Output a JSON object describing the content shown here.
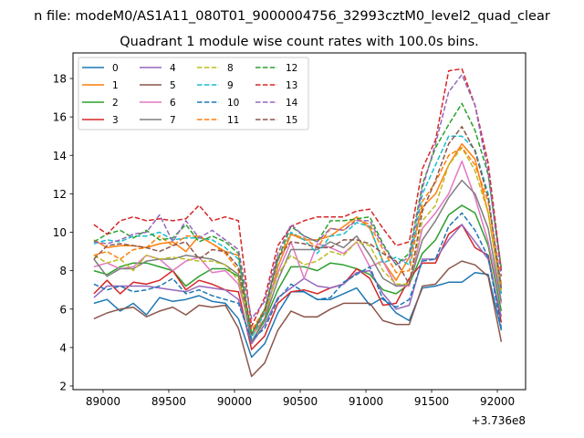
{
  "chart_data": {
    "type": "line",
    "suptitle": "n file: modeM0/AS1A11_080T01_9000004756_32993cztM0_level2_quad_clear",
    "title": "Quadrant 1 module wise count rates with 100.0s bins.",
    "xlabel": "",
    "ylabel": "",
    "x_offset_label": "+3.736e8",
    "xlim": [
      88771,
      92215
    ],
    "ylim": [
      1.81,
      19.33
    ],
    "xticks": [
      89000,
      89500,
      90000,
      90500,
      91000,
      91500,
      92000
    ],
    "yticks": [
      2,
      4,
      6,
      8,
      10,
      12,
      14,
      16,
      18
    ],
    "grid": false,
    "legend_placement": "top-left",
    "legend_columns": 4,
    "x": [
      88930,
      89030,
      89130,
      89230,
      89330,
      89430,
      89530,
      89630,
      89730,
      89830,
      89930,
      90030,
      90130,
      90230,
      90330,
      90430,
      90530,
      90630,
      90730,
      90830,
      90930,
      91030,
      91130,
      91230,
      91330,
      91430,
      91530,
      91630,
      91730,
      91830,
      91930,
      92030
    ],
    "series": [
      {
        "name": "0",
        "color": "#1f77b4",
        "style": "solid",
        "values": [
          6.3,
          6.5,
          5.9,
          6.3,
          5.7,
          6.6,
          6.4,
          6.5,
          6.7,
          6.4,
          6.3,
          5.5,
          3.5,
          4.2,
          5.8,
          6.9,
          6.9,
          6.5,
          6.5,
          6.8,
          7.1,
          6.2,
          6.6,
          5.8,
          5.4,
          7.1,
          7.2,
          7.4,
          7.4,
          7.9,
          7.8,
          4.9
        ]
      },
      {
        "name": "1",
        "color": "#ff7f0e",
        "style": "solid",
        "values": [
          9.6,
          9.2,
          9.3,
          9.3,
          9.2,
          9.4,
          9.5,
          9.0,
          9.8,
          9.4,
          9.0,
          8.8,
          4.6,
          5.5,
          8.2,
          9.9,
          9.6,
          9.6,
          9.8,
          10.3,
          10.8,
          10.2,
          8.5,
          7.5,
          8.7,
          11.3,
          12.0,
          13.5,
          14.6,
          13.8,
          11.0,
          6.8
        ]
      },
      {
        "name": "2",
        "color": "#2ca02c",
        "style": "solid",
        "values": [
          8.0,
          7.8,
          8.2,
          8.4,
          8.4,
          8.2,
          8.0,
          7.2,
          7.7,
          8.1,
          8.1,
          7.7,
          4.3,
          5.4,
          7.0,
          8.2,
          8.2,
          8.0,
          8.4,
          8.3,
          8.1,
          7.8,
          7.0,
          6.8,
          7.3,
          8.9,
          9.6,
          10.9,
          11.4,
          11.0,
          9.3,
          5.9
        ]
      },
      {
        "name": "3",
        "color": "#d62728",
        "style": "solid",
        "values": [
          6.8,
          7.5,
          6.8,
          7.4,
          7.3,
          7.5,
          8.0,
          7.0,
          7.5,
          7.3,
          7.0,
          6.9,
          3.9,
          4.6,
          6.3,
          6.9,
          7.0,
          6.8,
          7.1,
          7.3,
          8.1,
          7.6,
          6.2,
          6.3,
          7.6,
          8.4,
          8.4,
          9.9,
          10.4,
          9.2,
          8.8,
          5.3
        ]
      },
      {
        "name": "4",
        "color": "#9467bd",
        "style": "solid",
        "values": [
          6.6,
          7.2,
          7.2,
          7.2,
          7.2,
          7.1,
          7.0,
          6.9,
          7.2,
          7.1,
          7.0,
          6.5,
          4.2,
          5.2,
          6.6,
          7.1,
          7.6,
          7.2,
          7.1,
          7.3,
          7.9,
          8.0,
          6.8,
          6.0,
          6.2,
          8.6,
          8.6,
          9.6,
          10.4,
          9.5,
          8.6,
          5.6
        ]
      },
      {
        "name": "5",
        "color": "#8c564b",
        "style": "solid",
        "values": [
          5.5,
          5.8,
          6.0,
          6.1,
          5.6,
          5.9,
          6.1,
          5.7,
          6.2,
          6.1,
          6.2,
          5.0,
          2.5,
          3.2,
          4.9,
          5.9,
          5.6,
          5.6,
          6.0,
          6.3,
          6.3,
          6.3,
          5.4,
          5.2,
          5.2,
          7.2,
          7.3,
          8.1,
          8.5,
          8.3,
          7.7,
          4.3
        ]
      },
      {
        "name": "6",
        "color": "#e377c2",
        "style": "solid",
        "values": [
          8.2,
          8.4,
          8.1,
          8.2,
          8.8,
          8.6,
          8.0,
          8.5,
          8.7,
          7.9,
          8.0,
          7.3,
          4.7,
          5.8,
          7.9,
          9.5,
          7.6,
          9.4,
          9.2,
          8.9,
          9.5,
          8.2,
          8.5,
          7.2,
          7.2,
          10.2,
          11.0,
          12.0,
          13.7,
          11.8,
          9.5,
          6.3
        ]
      },
      {
        "name": "7",
        "color": "#7f7f7f",
        "style": "solid",
        "values": [
          8.6,
          7.7,
          8.1,
          8.1,
          8.5,
          8.6,
          8.6,
          8.8,
          8.7,
          8.6,
          8.3,
          7.8,
          4.3,
          5.5,
          7.5,
          9.1,
          9.1,
          9.1,
          9.5,
          9.2,
          9.8,
          8.8,
          7.6,
          7.2,
          7.3,
          9.6,
          10.6,
          11.8,
          12.7,
          12.0,
          10.2,
          6.4
        ]
      },
      {
        "name": "8",
        "color": "#bcbd22",
        "style": "dashed",
        "values": [
          8.8,
          8.4,
          8.6,
          8.0,
          8.8,
          8.6,
          8.7,
          8.6,
          8.5,
          8.5,
          8.3,
          7.5,
          4.8,
          5.8,
          7.8,
          8.8,
          8.3,
          8.5,
          9.0,
          8.8,
          9.5,
          9.3,
          8.0,
          7.3,
          7.3,
          10.6,
          11.4,
          13.5,
          14.4,
          13.2,
          11.0,
          7.0
        ]
      },
      {
        "name": "9",
        "color": "#17becf",
        "style": "dashed",
        "values": [
          9.4,
          9.6,
          9.5,
          9.8,
          9.8,
          10.0,
          9.6,
          9.7,
          9.7,
          9.6,
          9.2,
          8.6,
          4.5,
          5.8,
          8.5,
          10.0,
          9.6,
          8.9,
          9.8,
          9.9,
          10.5,
          10.3,
          8.4,
          8.7,
          8.3,
          12.0,
          13.5,
          15.0,
          15.0,
          14.3,
          12.0,
          6.8
        ]
      },
      {
        "name": "10",
        "color": "#1f77b4",
        "style": "dashed",
        "values": [
          7.3,
          7.0,
          7.2,
          6.9,
          7.0,
          7.2,
          7.6,
          6.8,
          7.0,
          6.7,
          6.5,
          6.3,
          4.4,
          5.0,
          6.5,
          7.3,
          6.9,
          6.5,
          6.6,
          7.4,
          7.8,
          8.2,
          6.5,
          6.1,
          6.5,
          8.5,
          8.6,
          10.3,
          11.0,
          10.1,
          8.7,
          5.0
        ]
      },
      {
        "name": "11",
        "color": "#ff7f0e",
        "style": "dashed",
        "values": [
          8.8,
          9.0,
          8.6,
          9.1,
          9.2,
          9.8,
          9.3,
          9.8,
          9.8,
          9.4,
          8.9,
          8.0,
          4.9,
          6.0,
          8.6,
          9.9,
          9.7,
          9.2,
          10.2,
          10.1,
          10.7,
          10.4,
          9.1,
          7.9,
          8.0,
          11.6,
          12.6,
          14.0,
          14.4,
          13.5,
          11.6,
          7.3
        ]
      },
      {
        "name": "12",
        "color": "#2ca02c",
        "style": "dashed",
        "values": [
          9.5,
          9.9,
          10.1,
          9.7,
          10.1,
          9.6,
          9.7,
          10.4,
          9.5,
          9.8,
          9.5,
          8.9,
          4.7,
          6.0,
          8.6,
          10.3,
          9.8,
          9.5,
          10.6,
          10.6,
          10.7,
          10.8,
          9.4,
          8.3,
          8.9,
          12.5,
          14.4,
          15.6,
          16.7,
          15.3,
          13.0,
          8.1
        ]
      },
      {
        "name": "13",
        "color": "#d62728",
        "style": "dashed",
        "values": [
          10.4,
          9.9,
          10.6,
          10.8,
          10.6,
          10.7,
          10.6,
          10.7,
          11.4,
          10.6,
          10.8,
          10.6,
          5.1,
          6.6,
          9.3,
          10.3,
          10.6,
          10.8,
          10.8,
          10.8,
          11.1,
          11.2,
          10.2,
          9.3,
          9.5,
          13.3,
          14.8,
          18.4,
          18.5,
          16.6,
          13.6,
          8.0
        ]
      },
      {
        "name": "14",
        "color": "#9467bd",
        "style": "dashed",
        "values": [
          9.5,
          9.4,
          9.6,
          9.9,
          10.0,
          10.9,
          9.5,
          10.6,
          9.7,
          10.1,
          9.6,
          9.1,
          5.5,
          6.4,
          8.9,
          10.4,
          9.8,
          9.5,
          10.2,
          10.1,
          10.6,
          10.6,
          9.3,
          8.3,
          8.7,
          12.3,
          14.6,
          17.3,
          18.2,
          16.6,
          13.1,
          7.7
        ]
      },
      {
        "name": "15",
        "color": "#8c564b",
        "style": "dashed",
        "values": [
          8.6,
          9.3,
          9.4,
          9.3,
          9.2,
          9.0,
          9.3,
          9.5,
          8.6,
          9.1,
          9.0,
          8.2,
          4.7,
          5.9,
          8.7,
          9.5,
          9.4,
          9.2,
          9.2,
          9.6,
          9.6,
          9.4,
          8.9,
          8.5,
          7.3,
          11.1,
          12.7,
          14.6,
          15.5,
          14.2,
          11.8,
          7.1
        ]
      }
    ]
  }
}
